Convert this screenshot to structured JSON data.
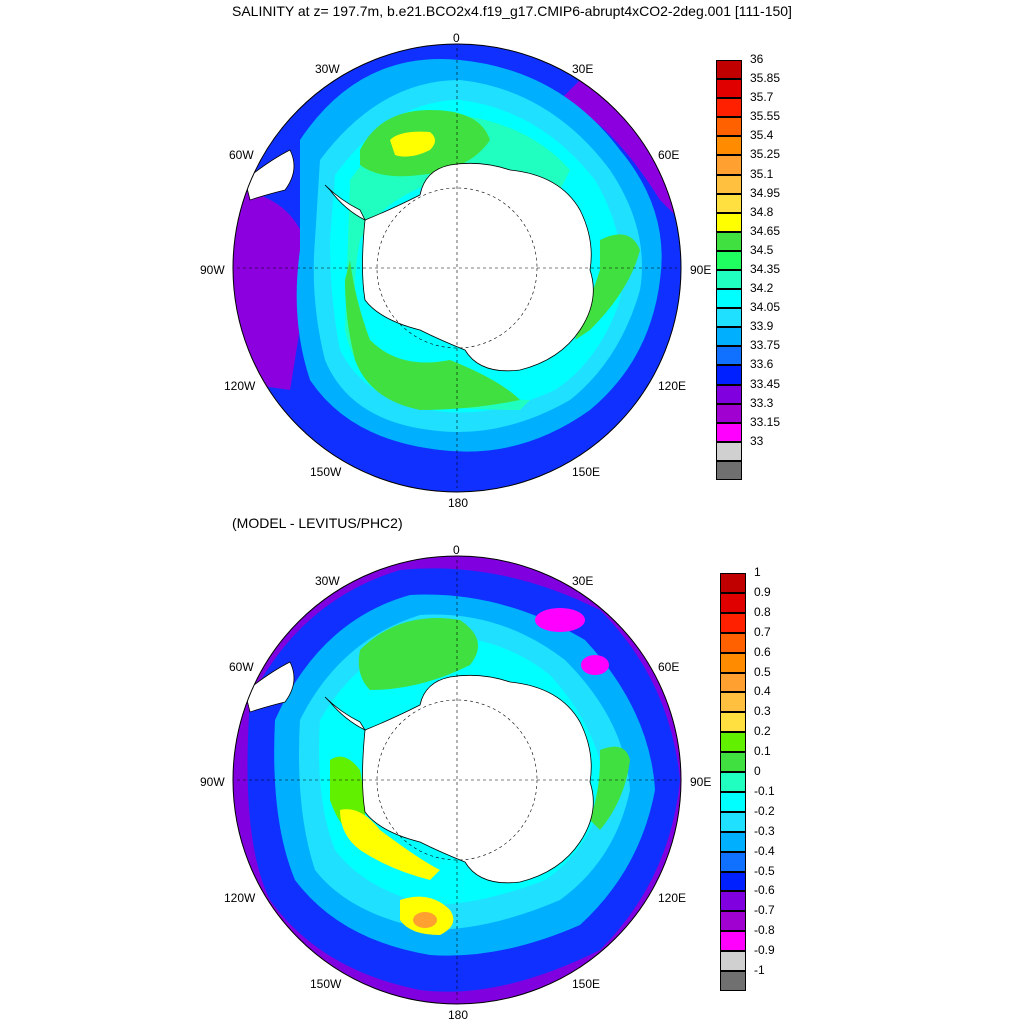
{
  "panels": [
    {
      "title": "SALINITY at z= 197.7m, b.e21.BCO2x4.f19_g17.CMIP6-abrupt4xCO2-2deg.001 [111-150]",
      "lon_labels": [
        "0",
        "30E",
        "60E",
        "90E",
        "120E",
        "150E",
        "180",
        "150W",
        "120W",
        "90W",
        "60W",
        "30W"
      ],
      "colorbar": {
        "labels": [
          "36",
          "35.85",
          "35.7",
          "35.55",
          "35.4",
          "35.25",
          "35.1",
          "34.95",
          "34.8",
          "34.65",
          "34.5",
          "34.35",
          "34.2",
          "34.05",
          "33.9",
          "33.75",
          "33.6",
          "33.45",
          "33.3",
          "33.15",
          "33"
        ],
        "colors": [
          "#c00000",
          "#e00000",
          "#ff2000",
          "#ff6000",
          "#ff8c00",
          "#ffa030",
          "#ffc040",
          "#ffe040",
          "#ffff00",
          "#40e040",
          "#20ff60",
          "#20ffc0",
          "#00ffff",
          "#20e0ff",
          "#00b0ff",
          "#1070ff",
          "#0020ff",
          "#8000e0",
          "#a000d0",
          "#ff00ff",
          "#d0d0d0",
          "#707070"
        ]
      }
    },
    {
      "title": "(MODEL - LEVITUS/PHC2)",
      "lon_labels": [
        "0",
        "30E",
        "60E",
        "90E",
        "120E",
        "150E",
        "180",
        "150W",
        "120W",
        "90W",
        "60W",
        "30W"
      ],
      "colorbar": {
        "labels": [
          "1",
          "0.9",
          "0.8",
          "0.7",
          "0.6",
          "0.5",
          "0.4",
          "0.3",
          "0.2",
          "0.1",
          "0",
          "-0.1",
          "-0.2",
          "-0.3",
          "-0.4",
          "-0.5",
          "-0.6",
          "-0.7",
          "-0.8",
          "-0.9",
          "-1"
        ],
        "colors": [
          "#c00000",
          "#e00000",
          "#ff2000",
          "#ff6000",
          "#ff8c00",
          "#ffa030",
          "#ffc040",
          "#ffe040",
          "#60f000",
          "#40e040",
          "#20ffc0",
          "#00ffff",
          "#20e0ff",
          "#00b0ff",
          "#1070ff",
          "#0020ff",
          "#8000e0",
          "#a000d0",
          "#ff00ff",
          "#d0d0d0",
          "#707070"
        ]
      }
    }
  ]
}
